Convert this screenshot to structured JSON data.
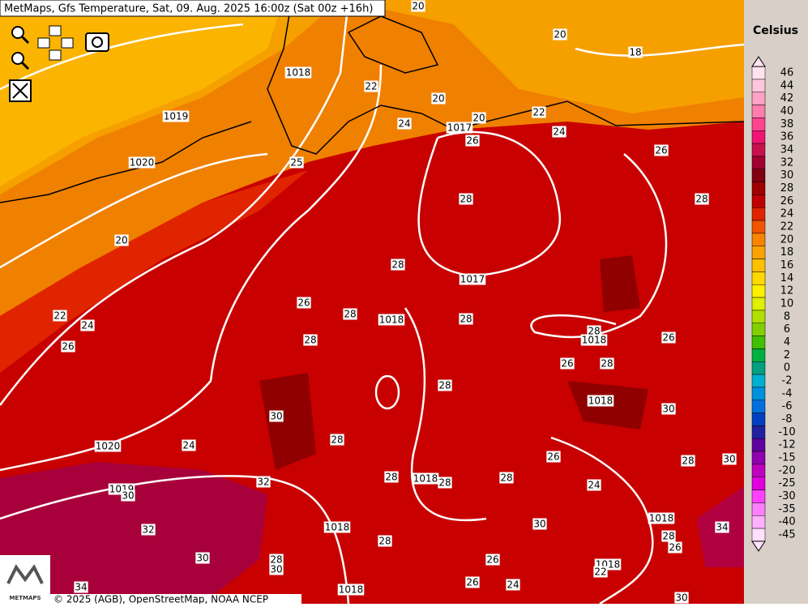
{
  "header": {
    "title": "MetMaps, Gfs Temperature, Sat, 09. Aug. 2025 16:00z (Sat 00z +16h)"
  },
  "legend": {
    "title": "Celsius",
    "labels": [
      46,
      44,
      42,
      40,
      38,
      36,
      34,
      32,
      30,
      28,
      26,
      24,
      22,
      20,
      18,
      16,
      14,
      12,
      10,
      8,
      6,
      4,
      2,
      0,
      -2,
      -4,
      -6,
      -8,
      -10,
      -12,
      -15,
      -20,
      -25,
      -30,
      -35,
      -40,
      -45
    ],
    "colors": [
      "#ffe4ee",
      "#ffc6dc",
      "#ffa2c4",
      "#ff7eac",
      "#ff4490",
      "#f01474",
      "#c8104e",
      "#a00030",
      "#800010",
      "#a00000",
      "#c00000",
      "#e02400",
      "#f05400",
      "#f88400",
      "#ffa200",
      "#ffc000",
      "#ffd800",
      "#fff000",
      "#e0f000",
      "#b0e000",
      "#80d000",
      "#40c000",
      "#00b040",
      "#00a080",
      "#00b0d0",
      "#0090e0",
      "#0070e0",
      "#0040c0",
      "#2020a0",
      "#6000a0",
      "#9000b0",
      "#c000c0",
      "#e000e0",
      "#ff40ff",
      "#ff80ff",
      "#ffb0ff",
      "#ffe0ff"
    ]
  },
  "map": {
    "labels": [
      20,
      20,
      18,
      1018,
      22,
      20,
      24,
      1017,
      20,
      22,
      26,
      24,
      26,
      1019,
      1020,
      25,
      28,
      28,
      20,
      28,
      1017,
      26,
      28,
      1018,
      28,
      22,
      24,
      26,
      28,
      28,
      1018,
      26,
      26,
      28,
      28,
      1018,
      30,
      30,
      28,
      1020,
      24,
      26,
      28,
      30,
      32,
      28,
      1018,
      28,
      28,
      24,
      1019,
      30,
      32,
      1018,
      30,
      1018,
      34,
      28,
      28,
      26,
      30,
      28,
      30,
      26,
      1018,
      22,
      26,
      24,
      34,
      1018,
      30
    ]
  },
  "logo": {
    "text": "METMAPS"
  },
  "footer": {
    "attribution": "© 2025 (AGB), OpenStreetMap, NOAA NCEP"
  }
}
